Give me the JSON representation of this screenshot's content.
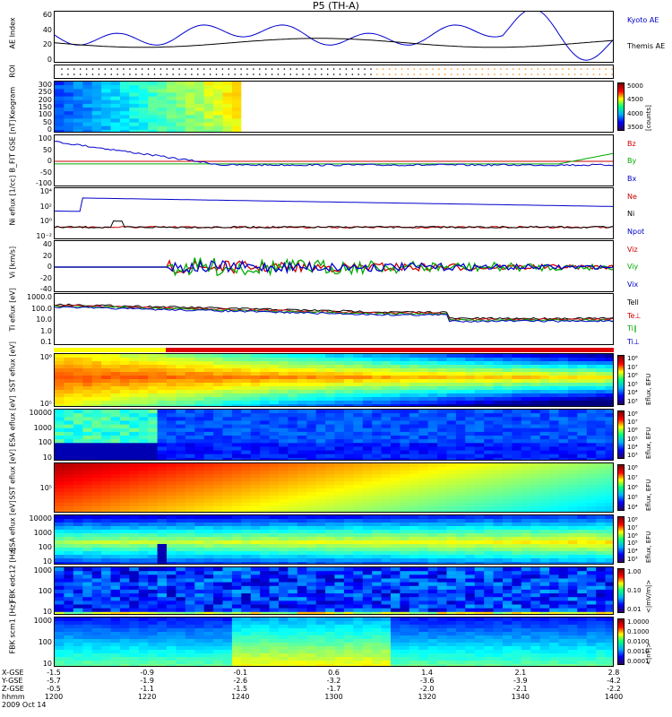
{
  "title": "P5 (TH-A)",
  "chart_data": [
    {
      "panel": "ae",
      "type": "line",
      "ylabel": "AE Index",
      "yticks": [
        "60",
        "40",
        "20",
        "0"
      ],
      "series": [
        {
          "name": "Kyoto AE",
          "color": "#0000cc"
        },
        {
          "name": "Themis AE",
          "color": "#000000"
        }
      ]
    },
    {
      "panel": "roi",
      "type": "scatter",
      "ylabel": "ROI"
    },
    {
      "panel": "keogram",
      "type": "heatmap",
      "ylabel": "Keogram",
      "yticks": [
        "300",
        "250",
        "200",
        "150",
        "100",
        "50",
        "0"
      ],
      "colorbar": {
        "ticks": [
          "5000",
          "4500",
          "4000",
          "3500"
        ],
        "title": "[counts]"
      }
    },
    {
      "panel": "bfit",
      "type": "line",
      "ylabel": "B_FIT GSE [nT]",
      "yticks": [
        "100",
        "50",
        "0",
        "-50",
        "-100"
      ],
      "series": [
        {
          "name": "Bz",
          "color": "#cc0000"
        },
        {
          "name": "By",
          "color": "#00aa00"
        },
        {
          "name": "Bx",
          "color": "#0000cc"
        }
      ]
    },
    {
      "panel": "ni",
      "type": "line",
      "ylabel": "Ni eflux [1/cc]",
      "yticks": [
        "10⁴",
        "10²",
        "10⁰",
        "10⁻²"
      ],
      "series": [
        {
          "name": "Ne",
          "color": "#cc0000"
        },
        {
          "name": "Ni",
          "color": "#000000"
        },
        {
          "name": "Npot",
          "color": "#0000cc"
        }
      ]
    },
    {
      "panel": "vi",
      "type": "line",
      "ylabel": "Vi [km/s]",
      "yticks": [
        "40",
        "20",
        "0",
        "-20",
        "-40"
      ],
      "series": [
        {
          "name": "Viz",
          "color": "#cc0000"
        },
        {
          "name": "Viy",
          "color": "#00aa00"
        },
        {
          "name": "Vix",
          "color": "#0000cc"
        }
      ]
    },
    {
      "panel": "ti",
      "type": "line",
      "ylabel": "Ti eflux [eV]",
      "yticks": [
        "1000.0",
        "100.0",
        "10.0",
        "1.0",
        "0.1"
      ],
      "series": [
        {
          "name": "Tell",
          "color": "#000000"
        },
        {
          "name": "Te⊥",
          "color": "#cc0000"
        },
        {
          "name": "Ti∥",
          "color": "#00aa00"
        },
        {
          "name": "Ti⊥",
          "color": "#0000cc"
        }
      ]
    },
    {
      "panel": "sst_e",
      "type": "heatmap",
      "ylabel": "SST eflux [eV]",
      "yticks": [
        "10⁶",
        "10⁵"
      ],
      "colorbar": {
        "ticks": [
          "10⁸",
          "10⁷",
          "10⁶",
          "10⁵",
          "10⁴",
          "10³"
        ],
        "title": "Eflux, EFU"
      }
    },
    {
      "panel": "esa_e",
      "type": "heatmap",
      "ylabel": "ESA eflux [eV]",
      "yticks": [
        "10000",
        "1000",
        "100",
        "10"
      ],
      "colorbar": {
        "ticks": [
          "10⁸",
          "10⁷",
          "10⁶",
          "10⁵",
          "10⁴",
          "10³"
        ],
        "title": "Eflux, EFU"
      }
    },
    {
      "panel": "sst_i",
      "type": "heatmap",
      "ylabel": "SST eflux [eV]",
      "yticks": [
        "10⁵"
      ],
      "colorbar": {
        "ticks": [
          "10⁸",
          "10⁷",
          "10⁶",
          "10⁵",
          "10⁴"
        ],
        "title": "Eflux, EFU"
      }
    },
    {
      "panel": "esa_i",
      "type": "heatmap",
      "ylabel": "ESA eflux [eV]",
      "yticks": [
        "10000",
        "1000",
        "100",
        "10"
      ],
      "colorbar": {
        "ticks": [
          "10⁸",
          "10⁷",
          "10⁶",
          "10⁵",
          "10⁴",
          "10³"
        ],
        "title": "Eflux, EFU"
      }
    },
    {
      "panel": "fbk_scm",
      "type": "heatmap",
      "ylabel": "FBK edc12 [Hz]",
      "yticks": [
        "1000",
        "100",
        "10"
      ],
      "colorbar": {
        "ticks": [
          "1.00",
          "0.10",
          "0.01"
        ],
        "title": "<|mV/m|>"
      }
    },
    {
      "panel": "fbk_b",
      "type": "heatmap",
      "ylabel": "FBK scm1 [Hz]",
      "yticks": [
        "1000",
        "100",
        "10"
      ],
      "colorbar": {
        "ticks": [
          "1.0000",
          "0.1000",
          "0.0100",
          "0.0010",
          "0.0001"
        ],
        "title": "<|nT|>"
      }
    }
  ],
  "xaxis": {
    "labels": [
      "X-GSE",
      "Y-GSE",
      "Z-GSE",
      "hhmm",
      "2009 Oct 14"
    ],
    "columns": [
      [
        "-1.5",
        "-5.7",
        "-0.5",
        "1200"
      ],
      [
        "-0.9",
        "-1.9",
        "-1.1",
        "1220"
      ],
      [
        "-0.1",
        "-2.6",
        "-1.5",
        "1240"
      ],
      [
        "0.6",
        "-3.2",
        "-1.7",
        "1300"
      ],
      [
        "1.4",
        "-3.6",
        "-2.0",
        "1320"
      ],
      [
        "2.1",
        "-3.9",
        "-2.1",
        "1340"
      ],
      [
        "2.8",
        "-4.2",
        "-2.2",
        "1400"
      ]
    ]
  }
}
